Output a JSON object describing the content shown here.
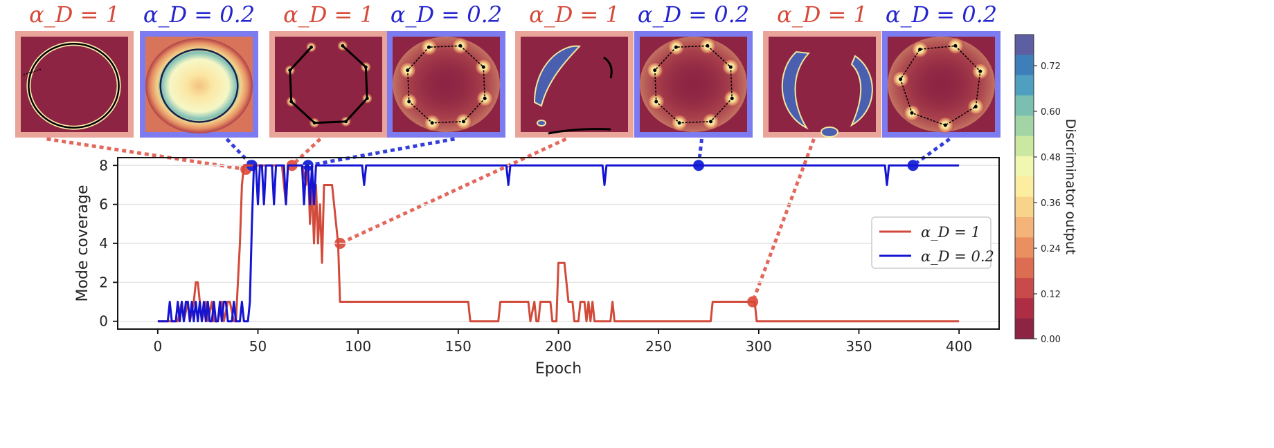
{
  "chart_data": {
    "type": "line",
    "xlabel": "Epoch",
    "ylabel": "Mode coverage",
    "xlim": [
      -20,
      420
    ],
    "ylim": [
      -0.4,
      8.4
    ],
    "xticks": [
      0,
      50,
      100,
      150,
      200,
      250,
      300,
      350,
      400
    ],
    "yticks": [
      0,
      2,
      4,
      6,
      8
    ],
    "grid": "horizontal",
    "legend_placement": "center-right",
    "legend": [
      "α_D = 1",
      "α_D = 0.2"
    ],
    "series": [
      {
        "name": "α_D = 1",
        "color": "#d24a3a",
        "points": [
          [
            0,
            0
          ],
          [
            10,
            0
          ],
          [
            12,
            1
          ],
          [
            13,
            0
          ],
          [
            15,
            1
          ],
          [
            16,
            0
          ],
          [
            18,
            1
          ],
          [
            19,
            2
          ],
          [
            20,
            2
          ],
          [
            21,
            1
          ],
          [
            22,
            0
          ],
          [
            24,
            1
          ],
          [
            25,
            0
          ],
          [
            27,
            1
          ],
          [
            28,
            0
          ],
          [
            30,
            0
          ],
          [
            32,
            1
          ],
          [
            33,
            0
          ],
          [
            35,
            1
          ],
          [
            36,
            1
          ],
          [
            38,
            0
          ],
          [
            39,
            0
          ],
          [
            40,
            2
          ],
          [
            41,
            4
          ],
          [
            42,
            7
          ],
          [
            43,
            8
          ],
          [
            44,
            8
          ],
          [
            45,
            8
          ],
          [
            46,
            8
          ],
          [
            48,
            8
          ],
          [
            60,
            8
          ],
          [
            62,
            8
          ],
          [
            64,
            6
          ],
          [
            65,
            8
          ],
          [
            68,
            8
          ],
          [
            70,
            8
          ],
          [
            72,
            8
          ],
          [
            74,
            7
          ],
          [
            75,
            8
          ],
          [
            76,
            5
          ],
          [
            77,
            7
          ],
          [
            78,
            4
          ],
          [
            79,
            7
          ],
          [
            80,
            4
          ],
          [
            81,
            6
          ],
          [
            82,
            3
          ],
          [
            83,
            7
          ],
          [
            86,
            7
          ],
          [
            87,
            7
          ],
          [
            88,
            6
          ],
          [
            90,
            4
          ],
          [
            91,
            1
          ],
          [
            155,
            1
          ],
          [
            156,
            0
          ],
          [
            170,
            0
          ],
          [
            171,
            1
          ],
          [
            185,
            1
          ],
          [
            186,
            0
          ],
          [
            188,
            1
          ],
          [
            189,
            0
          ],
          [
            190,
            0
          ],
          [
            191,
            1
          ],
          [
            196,
            1
          ],
          [
            197,
            0
          ],
          [
            199,
            0
          ],
          [
            200,
            3
          ],
          [
            203,
            3
          ],
          [
            205,
            1
          ],
          [
            207,
            1
          ],
          [
            208,
            0
          ],
          [
            210,
            0
          ],
          [
            211,
            1
          ],
          [
            213,
            1
          ],
          [
            214,
            0
          ],
          [
            215,
            1
          ],
          [
            216,
            0
          ],
          [
            217,
            1
          ],
          [
            218,
            0
          ],
          [
            220,
            0
          ],
          [
            226,
            0
          ],
          [
            227,
            1
          ],
          [
            228,
            0
          ],
          [
            276,
            0
          ],
          [
            277,
            1
          ],
          [
            298,
            1
          ],
          [
            299,
            0
          ],
          [
            400,
            0
          ]
        ]
      },
      {
        "name": "α_D = 0.2",
        "color": "#1414d2",
        "points": [
          [
            0,
            0
          ],
          [
            5,
            0
          ],
          [
            6,
            1
          ],
          [
            7,
            0
          ],
          [
            9,
            0
          ],
          [
            10,
            1
          ],
          [
            11,
            0
          ],
          [
            12,
            1
          ],
          [
            13,
            0
          ],
          [
            14,
            1
          ],
          [
            15,
            1
          ],
          [
            16,
            0
          ],
          [
            17,
            1
          ],
          [
            18,
            0
          ],
          [
            19,
            1
          ],
          [
            20,
            0
          ],
          [
            21,
            1
          ],
          [
            22,
            0
          ],
          [
            23,
            1
          ],
          [
            24,
            0
          ],
          [
            25,
            1
          ],
          [
            26,
            0
          ],
          [
            27,
            0
          ],
          [
            28,
            1
          ],
          [
            29,
            0
          ],
          [
            30,
            0
          ],
          [
            31,
            1
          ],
          [
            32,
            0
          ],
          [
            33,
            1
          ],
          [
            34,
            1
          ],
          [
            35,
            0
          ],
          [
            37,
            0
          ],
          [
            38,
            1
          ],
          [
            39,
            0
          ],
          [
            41,
            0
          ],
          [
            42,
            1
          ],
          [
            43,
            0
          ],
          [
            45,
            0
          ],
          [
            46,
            1
          ],
          [
            47,
            5
          ],
          [
            48,
            8
          ],
          [
            49,
            8
          ],
          [
            50,
            6
          ],
          [
            51,
            8
          ],
          [
            52,
            8
          ],
          [
            53,
            6
          ],
          [
            54,
            8
          ],
          [
            57,
            8
          ],
          [
            58,
            6
          ],
          [
            59,
            8
          ],
          [
            60,
            8
          ],
          [
            63,
            8
          ],
          [
            64,
            6
          ],
          [
            65,
            8
          ],
          [
            72,
            8
          ],
          [
            73,
            6
          ],
          [
            74,
            8
          ],
          [
            75,
            8
          ],
          [
            76,
            6
          ],
          [
            77,
            8
          ],
          [
            78,
            6
          ],
          [
            79,
            8
          ],
          [
            102,
            8
          ],
          [
            103,
            7
          ],
          [
            104,
            8
          ],
          [
            174,
            8
          ],
          [
            175,
            7
          ],
          [
            176,
            8
          ],
          [
            222,
            8
          ],
          [
            223,
            7
          ],
          [
            224,
            8
          ],
          [
            363,
            8
          ],
          [
            364,
            7
          ],
          [
            365,
            8
          ],
          [
            400,
            8
          ]
        ]
      }
    ],
    "markers": [
      {
        "series": 0,
        "x": 44,
        "y": 7.8,
        "color": "#e0584a"
      },
      {
        "series": 1,
        "x": 47,
        "y": 8,
        "color": "#1f2ad8"
      },
      {
        "series": 0,
        "x": 67,
        "y": 8,
        "color": "#e0584a"
      },
      {
        "series": 1,
        "x": 75,
        "y": 8,
        "color": "#1f2ad8"
      },
      {
        "series": 0,
        "x": 91,
        "y": 4,
        "color": "#e0584a"
      },
      {
        "series": 1,
        "x": 270,
        "y": 8,
        "color": "#1f2ad8"
      },
      {
        "series": 0,
        "x": 297,
        "y": 1,
        "color": "#e0584a"
      },
      {
        "series": 1,
        "x": 377,
        "y": 8,
        "color": "#1f2ad8"
      }
    ],
    "insets": [
      {
        "heading": "α_D = 1",
        "variant": "ring-red",
        "marker": 0
      },
      {
        "heading": "α_D = 0.2",
        "variant": "ring-blue",
        "marker": 1
      },
      {
        "heading": "α_D = 1",
        "variant": "oct-red",
        "marker": 2
      },
      {
        "heading": "α_D = 0.2",
        "variant": "oct-blue",
        "marker": 3
      },
      {
        "heading": "α_D = 1",
        "variant": "blob-red",
        "marker": 4
      },
      {
        "heading": "α_D = 0.2",
        "variant": "blob-blue",
        "marker": 5
      },
      {
        "heading": "α_D = 1",
        "variant": "crescent-red",
        "marker": 6
      },
      {
        "heading": "α_D = 0.2",
        "variant": "hex-blue",
        "marker": 7
      }
    ],
    "colorbar": {
      "label": "Discriminator output",
      "ticks": [
        "0.72",
        "0.60",
        "0.48",
        "0.36",
        "0.24",
        "0.12",
        "0.00"
      ],
      "colors": [
        "#5e5ea2",
        "#3f7fb9",
        "#4f9fc0",
        "#7abfb2",
        "#a2d4a6",
        "#cbe8a0",
        "#f1f7b0",
        "#fdeda0",
        "#f7d48a",
        "#f4b378",
        "#ea9060",
        "#dc6c52",
        "#c84a4a",
        "#ad2d45",
        "#8d2443"
      ]
    }
  }
}
